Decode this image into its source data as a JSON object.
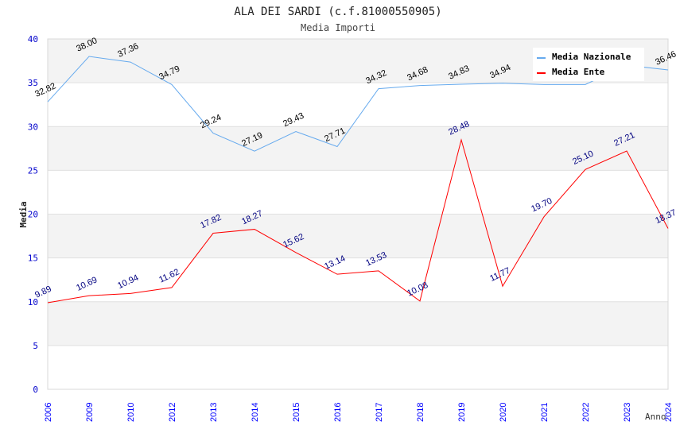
{
  "chart_data": {
    "type": "line",
    "title": "ALA DEI SARDI (c.f.81000550905)",
    "subtitle": "Media Importi",
    "xlabel": "Anno",
    "ylabel": "Media",
    "ylim": [
      0,
      40
    ],
    "yticks": [
      0,
      5,
      10,
      15,
      20,
      25,
      30,
      35,
      40
    ],
    "categories": [
      "2006",
      "2009",
      "2010",
      "2012",
      "2013",
      "2014",
      "2015",
      "2016",
      "2017",
      "2018",
      "2019",
      "2020",
      "2021",
      "2022",
      "2023",
      "2024"
    ],
    "series": [
      {
        "name": "Media Nazionale",
        "color": "#66aaee",
        "label_color": "#000000",
        "values": [
          32.82,
          38.0,
          37.36,
          34.79,
          29.24,
          27.19,
          29.43,
          27.71,
          34.32,
          34.68,
          34.83,
          34.94,
          34.8,
          34.8,
          37.0,
          36.46
        ],
        "labels": [
          "32.82",
          "38.00",
          "37.36",
          "34.79",
          "29.24",
          "27.19",
          "29.43",
          "27.71",
          "34.32",
          "34.68",
          "34.83",
          "34.94",
          "",
          "",
          "",
          "36.46"
        ]
      },
      {
        "name": "Media Ente",
        "color": "#ff0000",
        "label_color": "#000080",
        "values": [
          9.89,
          10.69,
          10.94,
          11.62,
          17.82,
          18.27,
          15.62,
          13.14,
          13.53,
          10.08,
          28.48,
          11.77,
          19.7,
          25.1,
          27.21,
          18.37
        ],
        "labels": [
          "9.89",
          "10.69",
          "10.94",
          "11.62",
          "17.82",
          "18.27",
          "15.62",
          "13.14",
          "13.53",
          "10.08",
          "28.48",
          "11.77",
          "19.70",
          "25.10",
          "27.21",
          "18.37"
        ]
      }
    ],
    "legend": "top-right",
    "grid": true
  }
}
